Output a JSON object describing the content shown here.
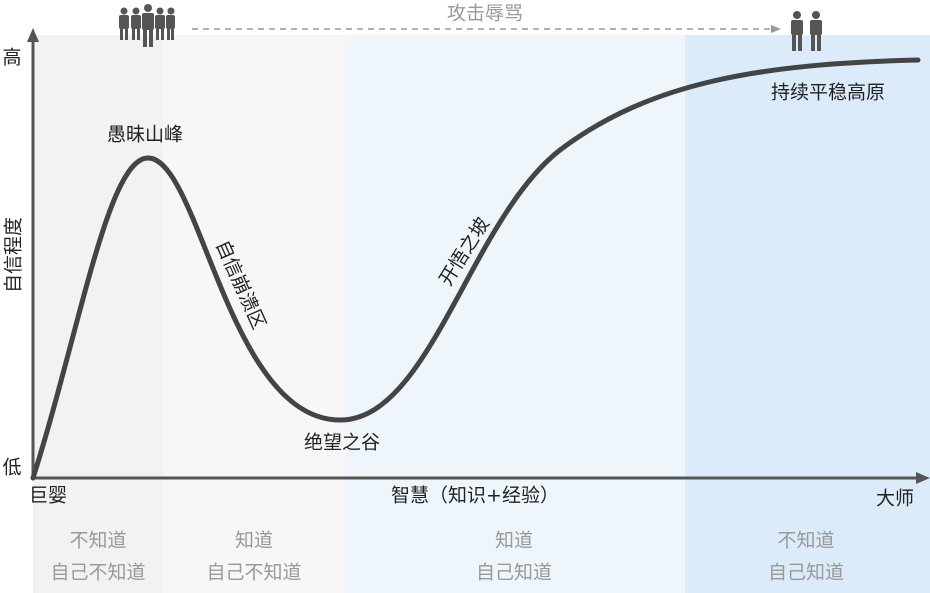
{
  "axes": {
    "y_high": "高",
    "y_low": "低",
    "y_label": "自信程度",
    "x_start": "巨婴",
    "x_label": "智慧（知识+经验）",
    "x_end": "大师"
  },
  "curve_labels": {
    "peak": "愚昧山峰",
    "collapse": "自信崩溃区",
    "valley": "绝望之谷",
    "slope": "开悟之坡",
    "plateau": "持续平稳高原"
  },
  "attack_label": "攻击辱骂",
  "zones": [
    {
      "line1": "不知道",
      "line2": "自己不知道"
    },
    {
      "line1": "知道",
      "line2": "自己不知道"
    },
    {
      "line1": "知道",
      "line2": "自己知道"
    },
    {
      "line1": "不知道",
      "line2": "自己知道"
    }
  ]
}
